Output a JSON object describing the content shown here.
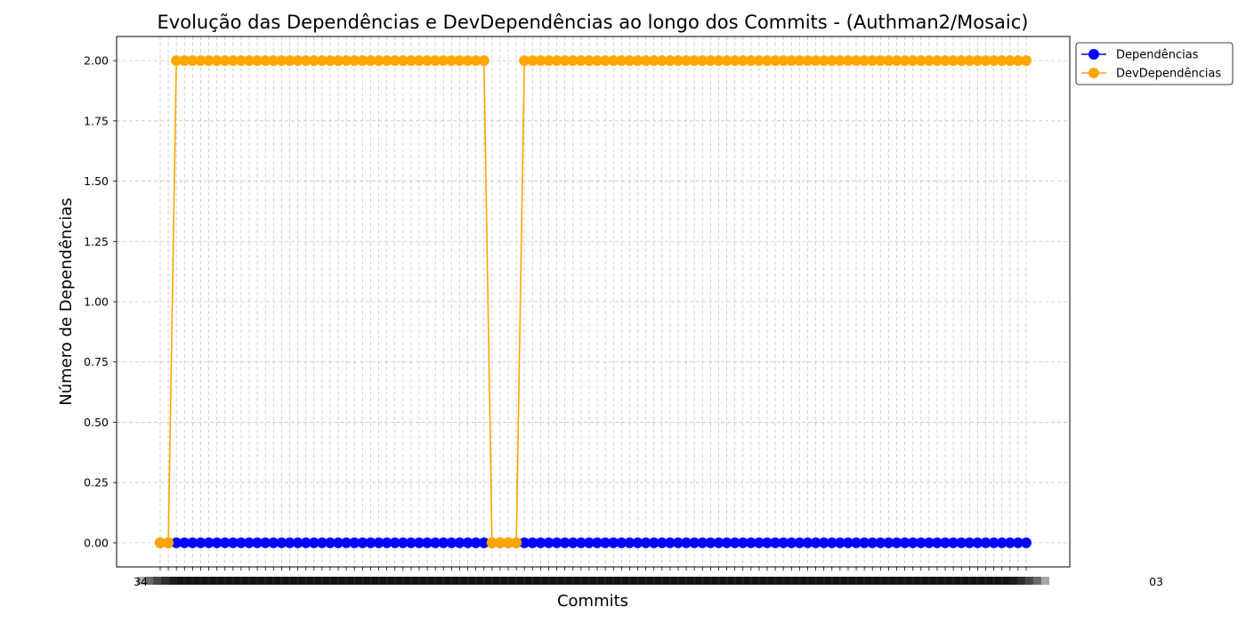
{
  "chart_data": {
    "type": "line",
    "title": "Evolução das Dependências e DevDependências ao longo dos Commits - (Authman2/Mosaic)",
    "xlabel": "Commits",
    "ylabel": "Número de Dependências",
    "ylim": [
      -0.1,
      2.1
    ],
    "yticks": [
      "0.00",
      "0.25",
      "0.50",
      "0.75",
      "1.00",
      "1.25",
      "1.50",
      "1.75",
      "2.00"
    ],
    "grid": true,
    "legend_position": "outside-top-right",
    "x_tick_labels_legible": {
      "first": "34",
      "last": "03"
    },
    "n_commits": 108,
    "series": [
      {
        "name": "Dependências",
        "color": "#0000ff",
        "values": [
          0,
          0,
          0,
          0,
          0,
          0,
          0,
          0,
          0,
          0,
          0,
          0,
          0,
          0,
          0,
          0,
          0,
          0,
          0,
          0,
          0,
          0,
          0,
          0,
          0,
          0,
          0,
          0,
          0,
          0,
          0,
          0,
          0,
          0,
          0,
          0,
          0,
          0,
          0,
          0,
          0,
          0,
          0,
          0,
          0,
          0,
          0,
          0,
          0,
          0,
          0,
          0,
          0,
          0,
          0,
          0,
          0,
          0,
          0,
          0,
          0,
          0,
          0,
          0,
          0,
          0,
          0,
          0,
          0,
          0,
          0,
          0,
          0,
          0,
          0,
          0,
          0,
          0,
          0,
          0,
          0,
          0,
          0,
          0,
          0,
          0,
          0,
          0,
          0,
          0,
          0,
          0,
          0,
          0,
          0,
          0,
          0,
          0,
          0,
          0,
          0,
          0,
          0,
          0,
          0,
          0,
          0,
          0
        ]
      },
      {
        "name": "DevDependências",
        "color": "#ffa500",
        "values": [
          0,
          0,
          2,
          2,
          2,
          2,
          2,
          2,
          2,
          2,
          2,
          2,
          2,
          2,
          2,
          2,
          2,
          2,
          2,
          2,
          2,
          2,
          2,
          2,
          2,
          2,
          2,
          2,
          2,
          2,
          2,
          2,
          2,
          2,
          2,
          2,
          2,
          2,
          2,
          2,
          2,
          0,
          0,
          0,
          0,
          2,
          2,
          2,
          2,
          2,
          2,
          2,
          2,
          2,
          2,
          2,
          2,
          2,
          2,
          2,
          2,
          2,
          2,
          2,
          2,
          2,
          2,
          2,
          2,
          2,
          2,
          2,
          2,
          2,
          2,
          2,
          2,
          2,
          2,
          2,
          2,
          2,
          2,
          2,
          2,
          2,
          2,
          2,
          2,
          2,
          2,
          2,
          2,
          2,
          2,
          2,
          2,
          2,
          2,
          2,
          2,
          2,
          2,
          2,
          2,
          2,
          2,
          2
        ]
      }
    ]
  }
}
